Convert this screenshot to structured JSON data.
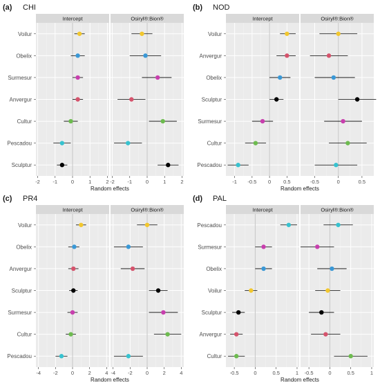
{
  "style": {
    "panel_bg": "#ebebeb",
    "grid_major": "#ffffff",
    "grid_minor": "#f5f5f5",
    "strip_bg": "#d9d9d9",
    "zero_line": "#c8c8c8",
    "text": "#1a1a1a",
    "axis_text": "#4d4d4d"
  },
  "category_colors": {
    "Voilur": "#f2c72e",
    "Obelix": "#3a98d6",
    "Surmesur": "#c83fae",
    "Anvergur": "#d5536c",
    "Cultur": "#6dbb4f",
    "Pescadou": "#37c2cf",
    "Sculptur": "#000000",
    "colors_note": ""
  },
  "chart_data": [
    {
      "type": "scatter",
      "panel_label": "(a)",
      "title": "CHI",
      "xlabel": "Random effects",
      "facets": [
        "Intercept",
        "Osiryl®:Bion®"
      ],
      "categories": [
        "Voilur",
        "Obelix",
        "Surmesur",
        "Anvergur",
        "Cultur",
        "Pescadou",
        "Sculptur"
      ],
      "xlim": [
        -2.1,
        2.1
      ],
      "xticks": [
        -2,
        -1,
        0,
        1,
        2
      ],
      "series": [
        {
          "facet": "Intercept",
          "est": [
            0.4,
            0.3,
            0.3,
            0.3,
            -0.1,
            -0.6,
            -0.6
          ],
          "lo": [
            0.1,
            -0.1,
            0.0,
            0.0,
            -0.5,
            -1.1,
            -0.9
          ],
          "hi": [
            0.7,
            0.7,
            0.6,
            0.6,
            0.3,
            -0.1,
            -0.3
          ]
        },
        {
          "facet": "Osiryl®:Bion®",
          "est": [
            -0.3,
            -0.1,
            0.6,
            -0.9,
            0.9,
            -1.1,
            1.2
          ],
          "lo": [
            -0.9,
            -1.0,
            -0.3,
            -1.7,
            0.1,
            -1.9,
            0.6
          ],
          "hi": [
            0.3,
            0.8,
            1.4,
            -0.1,
            1.7,
            -0.3,
            1.8
          ]
        }
      ]
    },
    {
      "type": "scatter",
      "panel_label": "(b)",
      "title": "NOD",
      "xlabel": "Random effects",
      "facets": [
        "Intercept",
        "Osiryl®:Bion®"
      ],
      "categories": [
        "Voilur",
        "Anvergur",
        "Obelix",
        "Sculptur",
        "Surmesur",
        "Cultur",
        "Pescadou"
      ],
      "xlim": [
        -1.25,
        0.85
      ],
      "xticks": [
        -1.0,
        -0.5,
        0.0,
        0.5
      ],
      "facet_xlims": [
        [
          -1.25,
          0.85
        ],
        [
          -0.8,
          0.75
        ]
      ],
      "facet_xticks": [
        [
          -1.0,
          -0.5,
          0.0,
          0.5
        ],
        [
          -0.5,
          0.0,
          0.5
        ]
      ],
      "series": [
        {
          "facet": "Intercept",
          "est": [
            0.5,
            0.5,
            0.3,
            0.2,
            -0.2,
            -0.4,
            -0.9
          ],
          "lo": [
            0.3,
            0.2,
            0.0,
            0.0,
            -0.5,
            -0.7,
            -1.2
          ],
          "hi": [
            0.75,
            0.75,
            0.6,
            0.4,
            0.1,
            -0.1,
            -0.6
          ]
        },
        {
          "facet": "Osiryl®:Bion®",
          "est": [
            0.0,
            -0.2,
            -0.1,
            0.4,
            0.1,
            0.2,
            -0.05
          ],
          "lo": [
            -0.4,
            -0.6,
            -0.5,
            0.0,
            -0.3,
            -0.2,
            -0.5
          ],
          "hi": [
            0.4,
            0.2,
            0.35,
            0.8,
            0.5,
            0.6,
            0.4
          ]
        }
      ]
    },
    {
      "type": "scatter",
      "panel_label": "(c)",
      "title": "PR4",
      "xlabel": "Random effects",
      "facets": [
        "Intercept",
        "Osiryl®:Bion®"
      ],
      "categories": [
        "Voilur",
        "Obelix",
        "Anvergur",
        "Sculptur",
        "Surmesur",
        "Cultur",
        "Pescadou"
      ],
      "xlim": [
        -4.3,
        4.3
      ],
      "xticks": [
        -4,
        -2,
        0,
        2,
        4
      ],
      "series": [
        {
          "facet": "Intercept",
          "est": [
            1.0,
            0.2,
            0.1,
            0.1,
            0.0,
            -0.2,
            -1.3
          ],
          "lo": [
            0.4,
            -0.5,
            -0.5,
            -0.4,
            -0.6,
            -0.8,
            -2.0
          ],
          "hi": [
            1.6,
            0.8,
            0.7,
            0.6,
            0.6,
            0.4,
            -0.6
          ]
        },
        {
          "facet": "Osiryl®:Bion®",
          "est": [
            0.0,
            -2.2,
            -1.7,
            1.3,
            1.9,
            2.4,
            -2.2
          ],
          "lo": [
            -1.2,
            -3.9,
            -3.1,
            0.2,
            0.2,
            0.8,
            -3.9
          ],
          "hi": [
            1.2,
            -0.5,
            -0.3,
            2.4,
            3.6,
            4.0,
            -0.5
          ]
        }
      ]
    },
    {
      "type": "scatter",
      "panel_label": "(d)",
      "title": "PAL",
      "xlabel": "Random effects",
      "facets": [
        "Intercept",
        "Osiryl®:Bion®"
      ],
      "categories": [
        "Pescadou",
        "Surmesur",
        "Obelix",
        "Voilur",
        "Sculptur",
        "Anvergur",
        "Cultur"
      ],
      "xlim": [
        -0.7,
        1.05
      ],
      "xticks": [
        -0.5,
        0.0,
        0.5,
        1.0
      ],
      "series": [
        {
          "facet": "Intercept",
          "est": [
            0.8,
            0.2,
            0.2,
            -0.1,
            -0.4,
            -0.45,
            -0.45
          ],
          "lo": [
            0.6,
            0.0,
            0.0,
            -0.25,
            -0.55,
            -0.6,
            -0.65
          ],
          "hi": [
            1.0,
            0.4,
            0.4,
            0.05,
            -0.25,
            -0.3,
            -0.25
          ]
        },
        {
          "facet": "Osiryl®:Bion®",
          "est": [
            0.2,
            -0.3,
            0.05,
            -0.05,
            -0.2,
            -0.1,
            0.5
          ],
          "lo": [
            -0.15,
            -0.7,
            -0.3,
            -0.35,
            -0.5,
            -0.45,
            0.1
          ],
          "hi": [
            0.55,
            0.1,
            0.4,
            0.25,
            0.1,
            0.25,
            0.9
          ]
        }
      ]
    }
  ]
}
